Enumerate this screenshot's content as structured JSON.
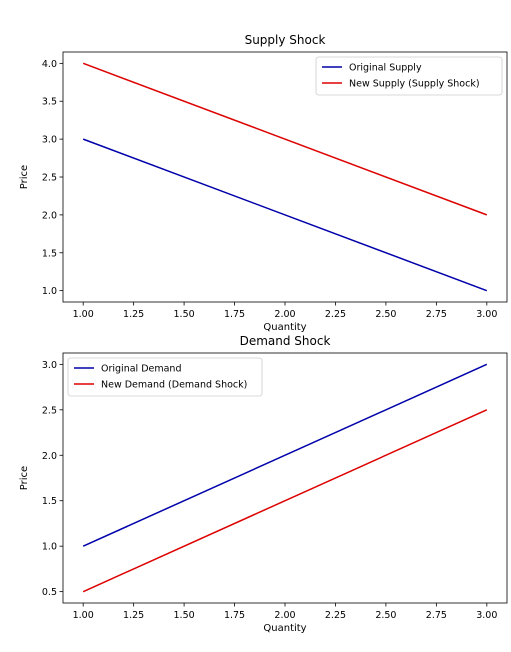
{
  "chart_data": [
    {
      "type": "line",
      "title": "Supply Shock",
      "xlabel": "Quantity",
      "ylabel": "Price",
      "xlim": [
        0.9,
        3.1
      ],
      "ylim": [
        0.85,
        4.15
      ],
      "x_ticks": [
        1.0,
        1.25,
        1.5,
        1.75,
        2.0,
        2.25,
        2.5,
        2.75,
        3.0
      ],
      "y_ticks": [
        1.0,
        1.5,
        2.0,
        2.5,
        3.0,
        3.5,
        4.0
      ],
      "x_tick_labels": [
        "1.00",
        "1.25",
        "1.50",
        "1.75",
        "2.00",
        "2.25",
        "2.50",
        "2.75",
        "3.00"
      ],
      "y_tick_labels": [
        "1.0",
        "1.5",
        "2.0",
        "2.5",
        "3.0",
        "3.5",
        "4.0"
      ],
      "legend_position": "top-right",
      "grid": false,
      "series": [
        {
          "name": "Original Supply",
          "color": "#0000aa",
          "x": [
            1,
            3
          ],
          "y": [
            3,
            1
          ]
        },
        {
          "name": "New Supply (Supply Shock)",
          "color": "#dd0000",
          "x": [
            1,
            3
          ],
          "y": [
            4,
            2
          ]
        }
      ]
    },
    {
      "type": "line",
      "title": "Demand Shock",
      "xlabel": "Quantity",
      "ylabel": "Price",
      "xlim": [
        0.9,
        3.1
      ],
      "ylim": [
        0.375,
        3.125
      ],
      "x_ticks": [
        1.0,
        1.25,
        1.5,
        1.75,
        2.0,
        2.25,
        2.5,
        2.75,
        3.0
      ],
      "y_ticks": [
        0.5,
        1.0,
        1.5,
        2.0,
        2.5,
        3.0
      ],
      "x_tick_labels": [
        "1.00",
        "1.25",
        "1.50",
        "1.75",
        "2.00",
        "2.25",
        "2.50",
        "2.75",
        "3.00"
      ],
      "y_tick_labels": [
        "0.5",
        "1.0",
        "1.5",
        "2.0",
        "2.5",
        "3.0"
      ],
      "legend_position": "top-left",
      "grid": false,
      "series": [
        {
          "name": "Original Demand",
          "color": "#0000aa",
          "x": [
            1,
            3
          ],
          "y": [
            1,
            3
          ]
        },
        {
          "name": "New Demand (Demand Shock)",
          "color": "#dd0000",
          "x": [
            1,
            3
          ],
          "y": [
            0.5,
            2.5
          ]
        }
      ]
    }
  ]
}
